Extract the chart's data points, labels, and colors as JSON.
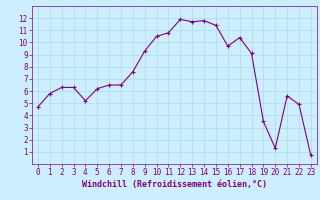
{
  "x": [
    0,
    1,
    2,
    3,
    4,
    5,
    6,
    7,
    8,
    9,
    10,
    11,
    12,
    13,
    14,
    15,
    16,
    17,
    18,
    19,
    20,
    21,
    22,
    23
  ],
  "y": [
    4.7,
    5.8,
    6.3,
    6.3,
    5.2,
    6.2,
    6.5,
    6.5,
    7.6,
    9.3,
    10.5,
    10.8,
    11.9,
    11.7,
    11.8,
    11.4,
    9.7,
    10.4,
    9.1,
    3.5,
    1.3,
    5.6,
    4.9,
    0.7
  ],
  "line_color": "#800080",
  "marker": "+",
  "marker_size": 3,
  "bg_color": "#cceeff",
  "grid_color": "#aadddd",
  "xlabel": "Windchill (Refroidissement éolien,°C)",
  "xlabel_color": "#800080",
  "tick_color": "#800080",
  "ylim": [
    0,
    13
  ],
  "xlim": [
    -0.5,
    23.5
  ],
  "yticks": [
    1,
    2,
    3,
    4,
    5,
    6,
    7,
    8,
    9,
    10,
    11,
    12
  ],
  "xticks": [
    0,
    1,
    2,
    3,
    4,
    5,
    6,
    7,
    8,
    9,
    10,
    11,
    12,
    13,
    14,
    15,
    16,
    17,
    18,
    19,
    20,
    21,
    22,
    23
  ],
  "tick_fontsize": 5.5,
  "xlabel_fontsize": 6.0,
  "linewidth": 0.8,
  "markeredgewidth": 0.8
}
